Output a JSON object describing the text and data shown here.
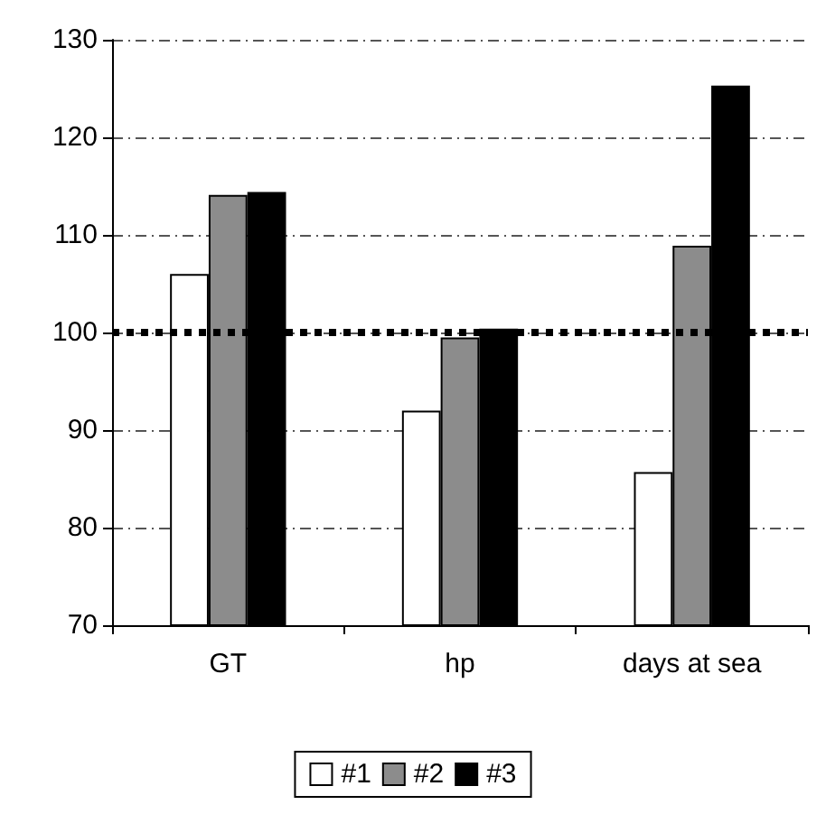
{
  "chart_data": {
    "type": "bar",
    "categories": [
      "GT",
      "hp",
      "days at sea"
    ],
    "series": [
      {
        "name": "#1",
        "color": "#ffffff",
        "values": [
          106,
          92,
          85.7
        ]
      },
      {
        "name": "#2",
        "color": "#8c8c8c",
        "values": [
          114.1,
          99.5,
          108.9
        ]
      },
      {
        "name": "#3",
        "color": "#000000",
        "values": [
          114.4,
          100.4,
          125.3
        ]
      }
    ],
    "ylim": [
      70,
      130
    ],
    "yticks": [
      70,
      80,
      90,
      100,
      110,
      120,
      130
    ],
    "grid": "y",
    "legend": "bottom",
    "ref_lines": [
      {
        "axis": "y",
        "value": 100,
        "color": "#000000",
        "line_style": "dotted"
      }
    ]
  }
}
